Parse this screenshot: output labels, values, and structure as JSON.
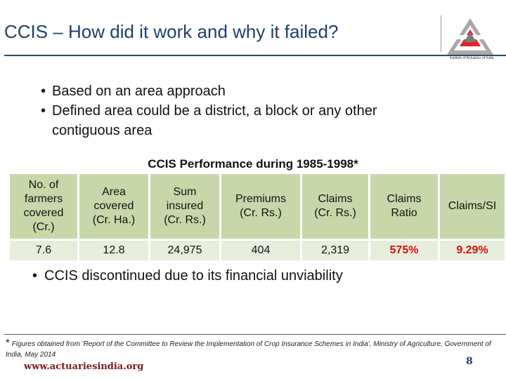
{
  "slide": {
    "title": "CCIS – How did it work and why it failed?",
    "logo_caption": "Institute of Actuaries of India"
  },
  "bullets": {
    "item1": "Based on an area approach",
    "item2_line1": "Defined area could be a district, a block or any other",
    "item2_line2": "contiguous area",
    "item3": "CCIS discontinued due to its financial unviability"
  },
  "table": {
    "title": "CCIS Performance during 1985-1998*",
    "headers": [
      {
        "l1": "No. of",
        "l2": "farmers",
        "l3": "covered",
        "l4": "(Cr.)"
      },
      {
        "l1": "Area",
        "l2": "covered",
        "l3": "(Cr. Ha.)"
      },
      {
        "l1": "Sum",
        "l2": "insured",
        "l3": "(Cr. Rs.)"
      },
      {
        "l1": "Premiums",
        "l2": "(Cr. Rs.)"
      },
      {
        "l1": "Claims",
        "l2": "(Cr. Rs.)"
      },
      {
        "l1": "Claims",
        "l2": "Ratio"
      },
      {
        "l1": "Claims/SI"
      }
    ],
    "row": [
      "7.6",
      "12.8",
      "24,975",
      "404",
      "2,319",
      "575%",
      "9.29%"
    ]
  },
  "footnote": {
    "star": "*",
    "text": "Figures obtained from 'Report of the Committee to Review the Implementation of Crop Insurance Schemes in India', Ministry of Agriculture, Government of India, May 2014"
  },
  "footer": {
    "url": "www.actuariesindia.org",
    "page": "8"
  },
  "colors": {
    "title": "#1f3f6e",
    "header_bg": "#c6d8aa",
    "row_bg": "#e6eedb",
    "highlight": "#d01010",
    "url": "#7a1a1a"
  }
}
